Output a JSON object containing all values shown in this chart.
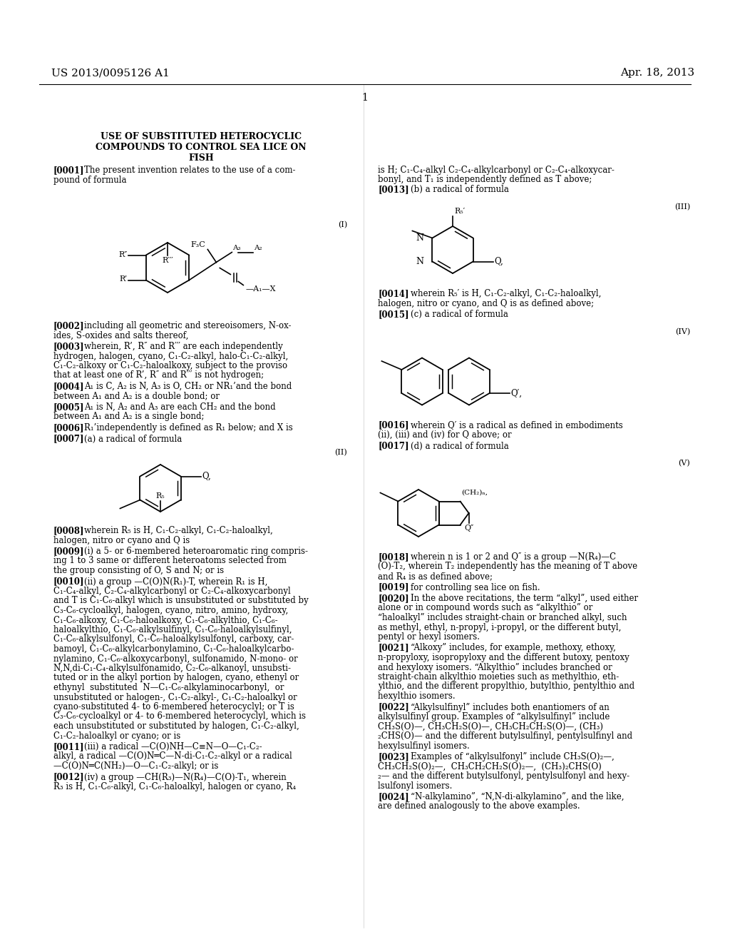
{
  "bg": "#ffffff",
  "header_left": "US 2013/0095126 A1",
  "header_right": "Apr. 18, 2013",
  "page_num": "1",
  "title1": "USE OF SUBSTITUTED HETEROCYCLIC",
  "title2": "COMPOUNDS TO CONTROL SEA LICE ON",
  "title3": "FISH"
}
